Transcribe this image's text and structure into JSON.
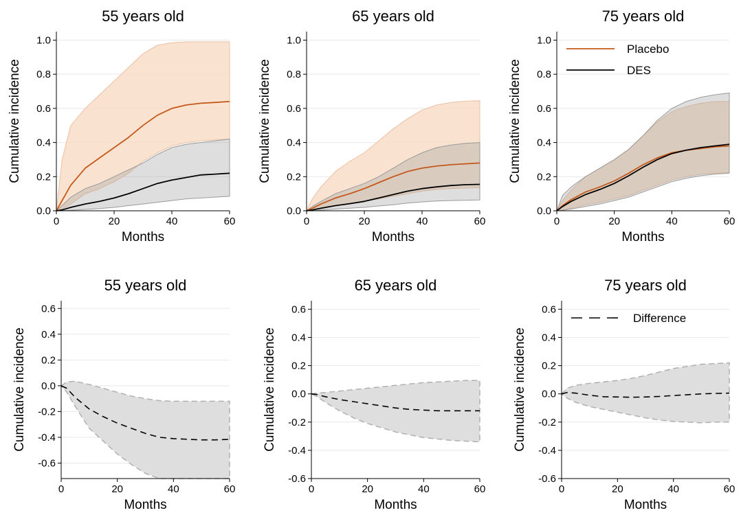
{
  "colors": {
    "placebo": "#c4581a",
    "placebo_band": "#f8ddc8",
    "des": "#000000",
    "des_band": "#a0a0a0",
    "diff_band": "#dedede",
    "diff_border": "#b0b0b0"
  },
  "chart_data": [
    {
      "type": "line",
      "panel": "top-55",
      "title": "55 years old",
      "xlabel": "Months",
      "ylabel": "Cumulative incidence",
      "xlim": [
        0,
        60
      ],
      "ylim": [
        0,
        1.05
      ],
      "xticks": [
        0,
        20,
        40,
        60
      ],
      "yticks": [
        0,
        0.2,
        0.4,
        0.6,
        0.8,
        1.0
      ],
      "ytick_labels": [
        "0.0",
        "0.2",
        "0.4",
        "0.6",
        "0.8",
        "1.0"
      ],
      "x": [
        0,
        2,
        5,
        10,
        15,
        20,
        25,
        30,
        35,
        40,
        45,
        50,
        55,
        60
      ],
      "series": [
        {
          "name": "Placebo",
          "values": [
            0,
            0.06,
            0.15,
            0.25,
            0.31,
            0.37,
            0.43,
            0.5,
            0.56,
            0.6,
            0.62,
            0.63,
            0.635,
            0.64
          ],
          "lower": [
            0,
            0.01,
            0.04,
            0.1,
            0.13,
            0.17,
            0.22,
            0.29,
            0.34,
            0.38,
            0.4,
            0.41,
            0.415,
            0.42
          ],
          "upper": [
            0,
            0.3,
            0.5,
            0.6,
            0.68,
            0.76,
            0.84,
            0.92,
            0.97,
            0.985,
            0.99,
            0.99,
            0.99,
            0.99
          ]
        },
        {
          "name": "DES",
          "values": [
            0,
            0.005,
            0.02,
            0.04,
            0.055,
            0.075,
            0.1,
            0.13,
            0.16,
            0.18,
            0.195,
            0.21,
            0.215,
            0.22
          ],
          "lower": [
            0,
            0.0,
            0.003,
            0.008,
            0.013,
            0.02,
            0.03,
            0.04,
            0.05,
            0.06,
            0.07,
            0.075,
            0.08,
            0.085
          ],
          "upper": [
            0,
            0.03,
            0.08,
            0.13,
            0.16,
            0.2,
            0.24,
            0.28,
            0.33,
            0.37,
            0.39,
            0.4,
            0.41,
            0.42
          ]
        }
      ]
    },
    {
      "type": "line",
      "panel": "top-65",
      "title": "65 years old",
      "xlabel": "Months",
      "ylabel": "Cumulative incidence",
      "xlim": [
        0,
        60
      ],
      "ylim": [
        0,
        1.05
      ],
      "xticks": [
        0,
        20,
        40,
        60
      ],
      "yticks": [
        0,
        0.2,
        0.4,
        0.6,
        0.8,
        1.0
      ],
      "ytick_labels": [
        "0.0",
        "0.2",
        "0.4",
        "0.6",
        "0.8",
        "1.0"
      ],
      "x": [
        0,
        2,
        5,
        10,
        15,
        20,
        25,
        30,
        35,
        40,
        45,
        50,
        55,
        60
      ],
      "series": [
        {
          "name": "Placebo",
          "values": [
            0,
            0.015,
            0.04,
            0.075,
            0.1,
            0.13,
            0.165,
            0.2,
            0.23,
            0.25,
            0.262,
            0.27,
            0.275,
            0.28
          ],
          "lower": [
            0,
            0.004,
            0.012,
            0.028,
            0.04,
            0.055,
            0.07,
            0.085,
            0.1,
            0.115,
            0.125,
            0.13,
            0.133,
            0.135
          ],
          "upper": [
            0,
            0.07,
            0.14,
            0.23,
            0.29,
            0.34,
            0.41,
            0.48,
            0.54,
            0.59,
            0.62,
            0.635,
            0.642,
            0.645
          ]
        },
        {
          "name": "DES",
          "values": [
            0,
            0.005,
            0.015,
            0.03,
            0.042,
            0.055,
            0.075,
            0.095,
            0.115,
            0.13,
            0.14,
            0.148,
            0.153,
            0.155
          ],
          "lower": [
            0,
            0.001,
            0.004,
            0.01,
            0.015,
            0.02,
            0.028,
            0.035,
            0.045,
            0.052,
            0.057,
            0.06,
            0.062,
            0.063
          ],
          "upper": [
            0,
            0.025,
            0.055,
            0.1,
            0.13,
            0.16,
            0.2,
            0.25,
            0.3,
            0.34,
            0.37,
            0.385,
            0.395,
            0.4
          ]
        }
      ]
    },
    {
      "type": "line",
      "panel": "top-75",
      "title": "75 years old",
      "xlabel": "Months",
      "ylabel": "Cumulative incidence",
      "xlim": [
        0,
        60
      ],
      "ylim": [
        0,
        1.05
      ],
      "xticks": [
        0,
        20,
        40,
        60
      ],
      "yticks": [
        0,
        0.2,
        0.4,
        0.6,
        0.8,
        1.0
      ],
      "ytick_labels": [
        "0.0",
        "0.2",
        "0.4",
        "0.6",
        "0.8",
        "1.0"
      ],
      "legend": "top-left",
      "x": [
        0,
        2,
        5,
        10,
        15,
        20,
        25,
        30,
        35,
        40,
        45,
        50,
        55,
        60
      ],
      "series": [
        {
          "name": "Placebo",
          "values": [
            0,
            0.03,
            0.065,
            0.11,
            0.14,
            0.175,
            0.22,
            0.27,
            0.31,
            0.34,
            0.355,
            0.365,
            0.375,
            0.38
          ],
          "lower": [
            0,
            0.005,
            0.015,
            0.035,
            0.05,
            0.07,
            0.09,
            0.12,
            0.15,
            0.18,
            0.2,
            0.215,
            0.22,
            0.225
          ],
          "upper": [
            0,
            0.06,
            0.12,
            0.2,
            0.25,
            0.3,
            0.36,
            0.44,
            0.52,
            0.58,
            0.61,
            0.63,
            0.64,
            0.64
          ]
        },
        {
          "name": "DES",
          "values": [
            0,
            0.025,
            0.055,
            0.095,
            0.125,
            0.16,
            0.205,
            0.255,
            0.3,
            0.335,
            0.355,
            0.37,
            0.38,
            0.39
          ],
          "lower": [
            0,
            0.003,
            0.01,
            0.025,
            0.04,
            0.06,
            0.08,
            0.11,
            0.14,
            0.17,
            0.19,
            0.205,
            0.215,
            0.22
          ],
          "upper": [
            0,
            0.09,
            0.14,
            0.2,
            0.25,
            0.3,
            0.36,
            0.44,
            0.53,
            0.6,
            0.64,
            0.665,
            0.68,
            0.69
          ]
        }
      ]
    },
    {
      "type": "line",
      "panel": "bottom-55",
      "title": "55 years old",
      "xlabel": "Months",
      "ylabel": "Cumulative incidence",
      "xlim": [
        0,
        60
      ],
      "ylim": [
        -0.72,
        0.66
      ],
      "xticks": [
        0,
        20,
        40,
        60
      ],
      "yticks": [
        -0.6,
        -0.4,
        -0.2,
        0,
        0.2,
        0.4,
        0.6
      ],
      "ytick_labels": [
        "-0.6",
        "-0.4",
        "-0.2",
        "0.0",
        "0.2",
        "0.4",
        "0.6"
      ],
      "x": [
        0,
        2,
        5,
        10,
        15,
        20,
        25,
        30,
        35,
        40,
        45,
        50,
        55,
        60
      ],
      "series": [
        {
          "name": "",
          "values": [
            0,
            -0.02,
            -0.09,
            -0.18,
            -0.24,
            -0.29,
            -0.33,
            -0.37,
            -0.4,
            -0.41,
            -0.415,
            -0.42,
            -0.42,
            -0.415
          ],
          "lower": [
            0,
            -0.05,
            -0.16,
            -0.33,
            -0.43,
            -0.53,
            -0.61,
            -0.68,
            -0.72,
            -0.72,
            -0.72,
            -0.72,
            -0.72,
            -0.72
          ],
          "upper": [
            0,
            0.03,
            0.035,
            0.01,
            -0.02,
            -0.05,
            -0.08,
            -0.1,
            -0.115,
            -0.12,
            -0.12,
            -0.12,
            -0.12,
            -0.12
          ]
        }
      ]
    },
    {
      "type": "line",
      "panel": "bottom-65",
      "title": "65 years old",
      "xlabel": "Months",
      "ylabel": "Cumulative incidence",
      "xlim": [
        0,
        60
      ],
      "ylim": [
        -0.6,
        0.66
      ],
      "xticks": [
        0,
        20,
        40,
        60
      ],
      "yticks": [
        -0.6,
        -0.4,
        -0.2,
        0,
        0.2,
        0.4,
        0.6
      ],
      "ytick_labels": [
        "-0.6",
        "-0.4",
        "-0.2",
        "0.0",
        "0.2",
        "0.4",
        "0.6"
      ],
      "x": [
        0,
        2,
        5,
        10,
        15,
        20,
        25,
        30,
        35,
        40,
        45,
        50,
        55,
        60
      ],
      "series": [
        {
          "name": "",
          "values": [
            0,
            -0.005,
            -0.02,
            -0.04,
            -0.055,
            -0.07,
            -0.085,
            -0.1,
            -0.11,
            -0.115,
            -0.12,
            -0.12,
            -0.12,
            -0.12
          ],
          "lower": [
            0,
            -0.02,
            -0.06,
            -0.12,
            -0.17,
            -0.21,
            -0.24,
            -0.27,
            -0.29,
            -0.31,
            -0.32,
            -0.33,
            -0.335,
            -0.34
          ],
          "upper": [
            0,
            0.005,
            0.01,
            0.02,
            0.03,
            0.04,
            0.05,
            0.06,
            0.07,
            0.08,
            0.085,
            0.09,
            0.095,
            0.095
          ]
        }
      ]
    },
    {
      "type": "line",
      "panel": "bottom-75",
      "title": "75 years old",
      "xlabel": "Months",
      "ylabel": "Cumulative incidence",
      "xlim": [
        0,
        60
      ],
      "ylim": [
        -0.6,
        0.66
      ],
      "xticks": [
        0,
        20,
        40,
        60
      ],
      "yticks": [
        -0.6,
        -0.4,
        -0.2,
        0,
        0.2,
        0.4,
        0.6
      ],
      "ytick_labels": [
        "-0.6",
        "-0.4",
        "-0.2",
        "0.0",
        "0.2",
        "0.4",
        "0.6"
      ],
      "legend": "top-left",
      "x": [
        0,
        2,
        5,
        10,
        15,
        20,
        25,
        30,
        35,
        40,
        45,
        50,
        55,
        60
      ],
      "series": [
        {
          "name": "Difference",
          "values": [
            0,
            0.01,
            0.005,
            -0.01,
            -0.02,
            -0.022,
            -0.024,
            -0.022,
            -0.018,
            -0.012,
            -0.006,
            0,
            0.003,
            0.005
          ],
          "lower": [
            0,
            -0.03,
            -0.06,
            -0.09,
            -0.11,
            -0.13,
            -0.15,
            -0.17,
            -0.185,
            -0.195,
            -0.2,
            -0.205,
            -0.2,
            -0.2
          ],
          "upper": [
            0,
            0.04,
            0.06,
            0.075,
            0.085,
            0.095,
            0.11,
            0.13,
            0.155,
            0.18,
            0.195,
            0.21,
            0.215,
            0.22
          ]
        }
      ]
    }
  ]
}
